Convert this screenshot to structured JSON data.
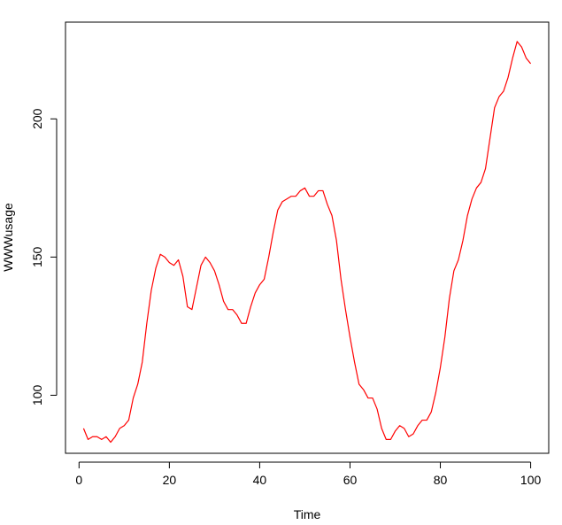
{
  "chart_data": {
    "type": "line",
    "title": "",
    "xlabel": "Time",
    "ylabel": "WWWusage",
    "xlim": [
      -3,
      104
    ],
    "ylim": [
      79,
      235
    ],
    "x_ticks": [
      0,
      20,
      40,
      60,
      80,
      100
    ],
    "y_ticks": [
      100,
      150,
      200
    ],
    "grid": false,
    "series": [
      {
        "color": "#ff0000",
        "x": [
          1,
          2,
          3,
          4,
          5,
          6,
          7,
          8,
          9,
          10,
          11,
          12,
          13,
          14,
          15,
          16,
          17,
          18,
          19,
          20,
          21,
          22,
          23,
          24,
          25,
          26,
          27,
          28,
          29,
          30,
          31,
          32,
          33,
          34,
          35,
          36,
          37,
          38,
          39,
          40,
          41,
          42,
          43,
          44,
          45,
          46,
          47,
          48,
          49,
          50,
          51,
          52,
          53,
          54,
          55,
          56,
          57,
          58,
          59,
          60,
          61,
          62,
          63,
          64,
          65,
          66,
          67,
          68,
          69,
          70,
          71,
          72,
          73,
          74,
          75,
          76,
          77,
          78,
          79,
          80,
          81,
          82,
          83,
          84,
          85,
          86,
          87,
          88,
          89,
          90,
          91,
          92,
          93,
          94,
          95,
          96,
          97,
          98,
          99,
          100
        ],
        "values": [
          88,
          84,
          85,
          85,
          84,
          85,
          83,
          85,
          88,
          89,
          91,
          99,
          104,
          112,
          126,
          138,
          146,
          151,
          150,
          148,
          147,
          149,
          143,
          132,
          131,
          139,
          147,
          150,
          148,
          145,
          140,
          134,
          131,
          131,
          129,
          126,
          126,
          132,
          137,
          140,
          142,
          150,
          159,
          167,
          170,
          171,
          172,
          172,
          174,
          175,
          172,
          172,
          174,
          174,
          169,
          165,
          156,
          142,
          131,
          121,
          112,
          104,
          102,
          99,
          99,
          95,
          88,
          84,
          84,
          87,
          89,
          88,
          85,
          86,
          89,
          91,
          91,
          94,
          101,
          110,
          121,
          135,
          145,
          149,
          156,
          165,
          171,
          175,
          177,
          182,
          193,
          204,
          208,
          210,
          215,
          222,
          228,
          226,
          222,
          220
        ]
      }
    ]
  }
}
